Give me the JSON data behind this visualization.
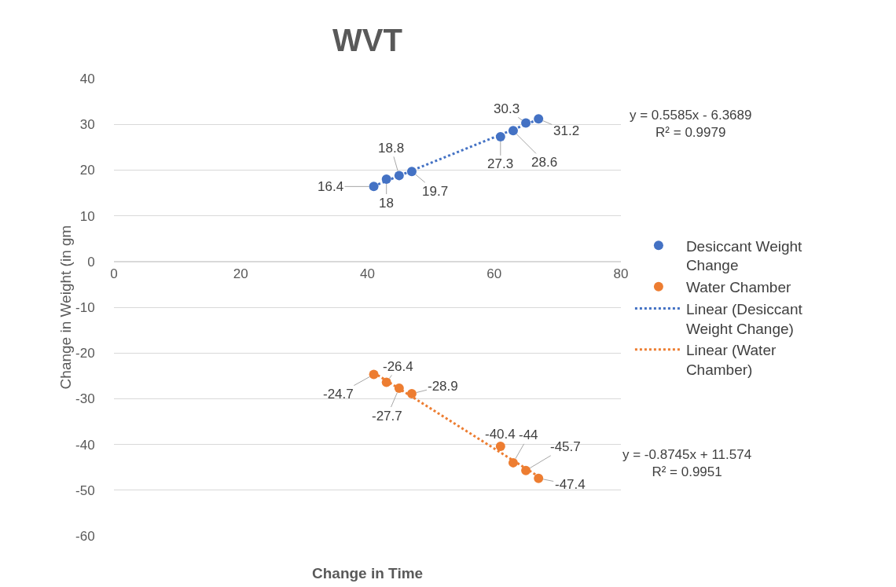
{
  "chart_data": {
    "type": "scatter",
    "title": "WVT",
    "xlabel": "Change in Time",
    "ylabel": "Change in Weight (in gm",
    "xlim": [
      0,
      80
    ],
    "xticks": [
      0,
      20,
      40,
      60,
      80
    ],
    "ylim": [
      -60,
      40
    ],
    "yticks": [
      -60,
      -50,
      -40,
      -30,
      -20,
      -10,
      0,
      10,
      20,
      30,
      40
    ],
    "grid": "y",
    "legend": "right",
    "marker": "circle",
    "series": [
      {
        "name": "Desiccant Weight Change",
        "color": "#4472c4",
        "x": [
          41,
          43,
          45,
          47,
          61,
          63,
          65,
          67
        ],
        "values": [
          16.4,
          18,
          18.8,
          19.7,
          27.3,
          28.6,
          30.3,
          31.2
        ],
        "value_labels": [
          "16.4",
          "18",
          "18.8",
          "19.7",
          "27.3",
          "28.6",
          "30.3",
          "31.2"
        ]
      },
      {
        "name": "Water Chamber",
        "color": "#ed7d31",
        "x": [
          41,
          43,
          45,
          47,
          61,
          63,
          65,
          67
        ],
        "values": [
          -24.7,
          -26.4,
          -27.7,
          -28.9,
          -40.4,
          -44,
          -45.7,
          -47.4
        ],
        "value_labels": [
          "-24.7",
          "-26.4",
          "-27.7",
          "-28.9",
          "-40.4",
          "-44",
          "-45.7",
          "-47.4"
        ]
      },
      {
        "name": "Linear (Desiccant Weight Change)",
        "type": "line",
        "line_style": "dotted",
        "marker": "none",
        "color": "#4472c4",
        "x": [
          41,
          67
        ],
        "values": [
          16.5,
          31.1
        ]
      },
      {
        "name": "Linear (Water Chamber)",
        "type": "line",
        "line_style": "dotted",
        "marker": "none",
        "color": "#ed7d31",
        "x": [
          41,
          67
        ],
        "values": [
          -24.3,
          -47.0
        ]
      }
    ],
    "annotations": [
      "y = 0.5585x - 6.3689\nR² = 0.9979",
      "y = -0.8745x + 11.574\nR² = 0.9951"
    ]
  }
}
